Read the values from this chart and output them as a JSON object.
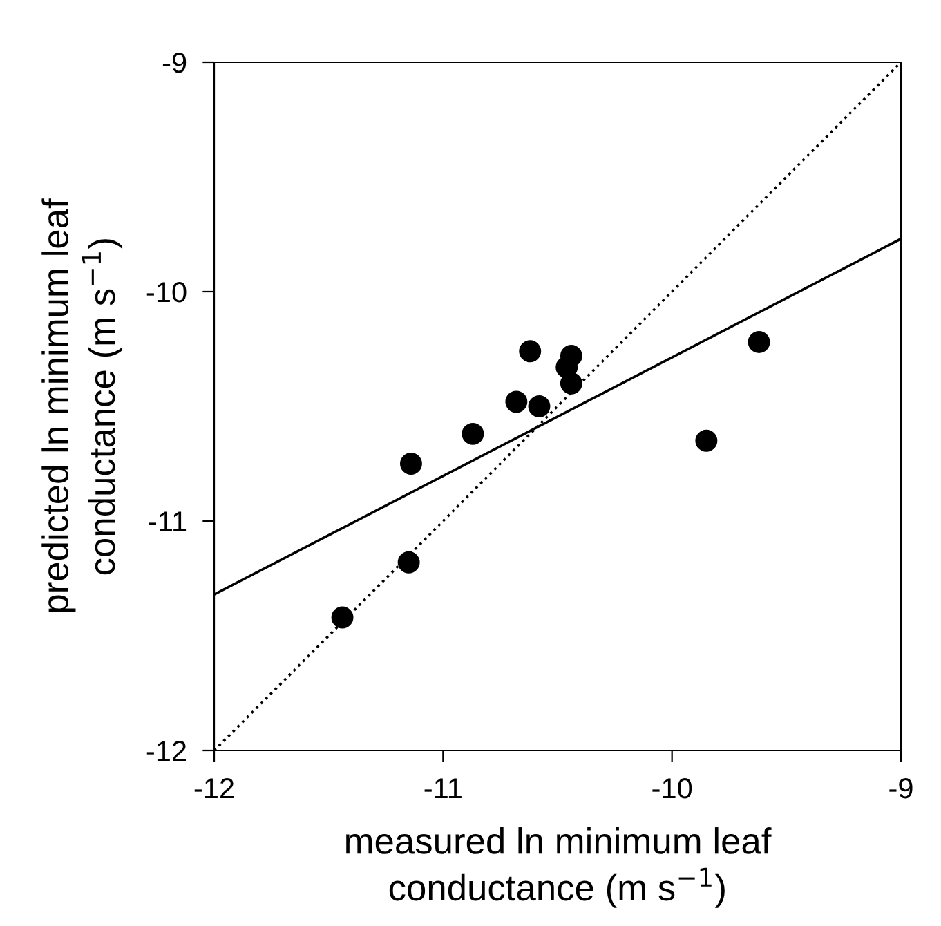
{
  "chart_data": {
    "type": "scatter",
    "xlabel": "measured ln minimum leaf\nconductance (m s$^{−1}$)",
    "ylabel": "predicted ln minimum leaf\nconductance (m s$^{−1}$)",
    "xlim": [
      -12,
      -9
    ],
    "ylim": [
      -12,
      -9
    ],
    "xticks": [
      -12,
      -11,
      -10,
      -9
    ],
    "yticks": [
      -12,
      -11,
      -10,
      -9
    ],
    "grid": false,
    "marker": "circle",
    "series": [
      {
        "color": "#000000",
        "x": [
          -11.44,
          -11.14,
          -11.15,
          -10.87,
          -10.68,
          -10.62,
          -10.58,
          -10.46,
          -10.44,
          -10.44,
          -9.85,
          -9.62
        ],
        "values": [
          -11.42,
          -10.75,
          -11.18,
          -10.62,
          -10.48,
          -10.26,
          -10.5,
          -10.33,
          -10.28,
          -10.4,
          -10.65,
          -10.22
        ]
      },
      {
        "type": "line",
        "color": "#000000",
        "line_style": "solid",
        "marker": "none",
        "x": [
          -12,
          -9
        ],
        "values": [
          -11.32,
          -9.77
        ]
      },
      {
        "type": "line",
        "color": "#000000",
        "line_style": "dotted",
        "marker": "none",
        "x": [
          -12,
          -9
        ],
        "values": [
          -12,
          -9
        ]
      }
    ]
  }
}
